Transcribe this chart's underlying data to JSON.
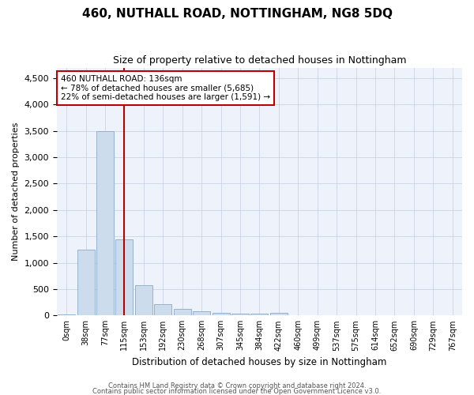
{
  "title": "460, NUTHALL ROAD, NOTTINGHAM, NG8 5DQ",
  "subtitle": "Size of property relative to detached houses in Nottingham",
  "xlabel": "Distribution of detached houses by size in Nottingham",
  "ylabel": "Number of detached properties",
  "bar_color": "#ccdcec",
  "bar_edge_color": "#8aaac8",
  "categories": [
    "0sqm",
    "38sqm",
    "77sqm",
    "115sqm",
    "153sqm",
    "192sqm",
    "230sqm",
    "268sqm",
    "307sqm",
    "345sqm",
    "384sqm",
    "422sqm",
    "460sqm",
    "499sqm",
    "537sqm",
    "575sqm",
    "614sqm",
    "652sqm",
    "690sqm",
    "729sqm",
    "767sqm"
  ],
  "values": [
    20,
    1250,
    3500,
    1450,
    580,
    220,
    120,
    75,
    50,
    40,
    35,
    55,
    10,
    0,
    0,
    0,
    0,
    0,
    0,
    0,
    0
  ],
  "vline_color": "#bb0000",
  "vline_pos": 3.0,
  "annotation_line1": "460 NUTHALL ROAD: 136sqm",
  "annotation_line2": "← 78% of detached houses are smaller (5,685)",
  "annotation_line3": "22% of semi-detached houses are larger (1,591) →",
  "ylim": [
    0,
    4700
  ],
  "yticks": [
    0,
    500,
    1000,
    1500,
    2000,
    2500,
    3000,
    3500,
    4000,
    4500
  ],
  "footer1": "Contains HM Land Registry data © Crown copyright and database right 2024.",
  "footer2": "Contains public sector information licensed under the Open Government Licence v3.0.",
  "bg_color": "#eef3fb",
  "grid_color": "#c5cfe0",
  "title_fontsize": 11,
  "subtitle_fontsize": 9
}
